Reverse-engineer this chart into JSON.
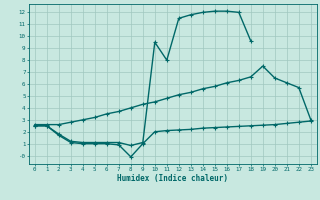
{
  "bg_color": "#c8e8e0",
  "grid_color": "#a0c8c0",
  "line_color": "#006868",
  "line_width": 1.0,
  "marker": "+",
  "marker_size": 3,
  "marker_ew": 0.8,
  "xlim": [
    -0.5,
    23.5
  ],
  "ylim": [
    -0.7,
    12.7
  ],
  "xticks": [
    0,
    1,
    2,
    3,
    4,
    5,
    6,
    7,
    8,
    9,
    10,
    11,
    12,
    13,
    14,
    15,
    16,
    17,
    18,
    19,
    20,
    21,
    22,
    23
  ],
  "yticks": [
    0,
    1,
    2,
    3,
    4,
    5,
    6,
    7,
    8,
    9,
    10,
    11,
    12
  ],
  "ytick_labels": [
    "-0",
    "1",
    "2",
    "3",
    "4",
    "5",
    "6",
    "7",
    "8",
    "9",
    "10",
    "11",
    "12"
  ],
  "xlabel": "Humidex (Indice chaleur)",
  "xlabel_fontsize": 5.5,
  "tick_fontsize": 4.2,
  "curve1_x": [
    0,
    1,
    2,
    3,
    4,
    5,
    6,
    7,
    8,
    9,
    10,
    11,
    12,
    13,
    14,
    15,
    16,
    17,
    18
  ],
  "curve1_y": [
    2.5,
    2.5,
    1.8,
    1.2,
    1.1,
    1.1,
    1.1,
    1.1,
    0.85,
    1.1,
    9.5,
    8.0,
    11.5,
    11.8,
    12.0,
    12.1,
    12.1,
    12.0,
    9.6
  ],
  "curve2_x": [
    0,
    1,
    2,
    3,
    4,
    5,
    6,
    7,
    8,
    9,
    10,
    11,
    12,
    13,
    14,
    15,
    16,
    17,
    18,
    19,
    20,
    21,
    22,
    23
  ],
  "curve2_y": [
    2.6,
    2.6,
    2.6,
    2.8,
    3.0,
    3.2,
    3.5,
    3.7,
    4.0,
    4.3,
    4.5,
    4.8,
    5.1,
    5.3,
    5.6,
    5.8,
    6.1,
    6.3,
    6.6,
    7.5,
    6.5,
    6.1,
    5.7,
    3.0
  ],
  "curve3_x": [
    0,
    1,
    2,
    3,
    4,
    5,
    6,
    7,
    8,
    9,
    10,
    11,
    12,
    13,
    14,
    15,
    16,
    17,
    18,
    19,
    20,
    21,
    22,
    23
  ],
  "curve3_y": [
    2.5,
    2.5,
    1.7,
    1.1,
    1.0,
    1.0,
    1.0,
    0.9,
    -0.1,
    1.0,
    2.0,
    2.1,
    2.15,
    2.2,
    2.3,
    2.35,
    2.4,
    2.45,
    2.5,
    2.55,
    2.6,
    2.7,
    2.8,
    2.9
  ]
}
